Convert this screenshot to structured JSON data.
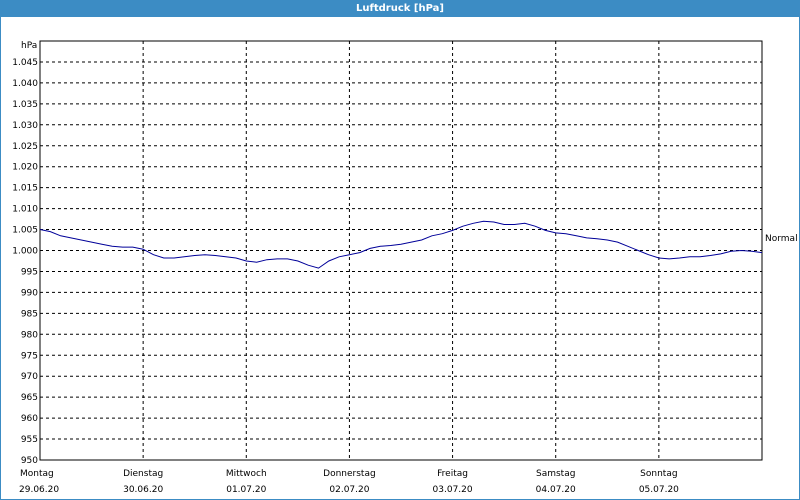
{
  "window": {
    "title": "Luftdruck [hPa]"
  },
  "chart_data": {
    "type": "line",
    "title": "Luftdruck [hPa]",
    "ylabel": "hPa",
    "ylim": [
      950,
      1050
    ],
    "yticks": [
      "950",
      "955",
      "960",
      "965",
      "970",
      "975",
      "980",
      "985",
      "990",
      "995",
      "1.000",
      "1.005",
      "1.010",
      "1.015",
      "1.020",
      "1.025",
      "1.030",
      "1.035",
      "1.040",
      "1.045"
    ],
    "xlim": [
      0,
      7
    ],
    "day_labels": [
      {
        "day": "Montag",
        "date": "29.06.20"
      },
      {
        "day": "Dienstag",
        "date": "30.06.20"
      },
      {
        "day": "Mittwoch",
        "date": "01.07.20"
      },
      {
        "day": "Donnerstag",
        "date": "02.07.20"
      },
      {
        "day": "Freitag",
        "date": "03.07.20"
      },
      {
        "day": "Samstag",
        "date": "04.07.20"
      },
      {
        "day": "Sonntag",
        "date": "05.07.20"
      }
    ],
    "grid": true,
    "reference_line": {
      "label": "Normal",
      "value": 1003
    },
    "line_color": "#000099",
    "series": [
      {
        "x": [
          0,
          0.1,
          0.2,
          0.3,
          0.4,
          0.5,
          0.6,
          0.7,
          0.8,
          0.9,
          1.0,
          1.1,
          1.2,
          1.3,
          1.4,
          1.5,
          1.6,
          1.7,
          1.8,
          1.9,
          2.0,
          2.1,
          2.2,
          2.3,
          2.4,
          2.5,
          2.6,
          2.7,
          2.8,
          2.9,
          3.0,
          3.1,
          3.2,
          3.3,
          3.4,
          3.5,
          3.6,
          3.7,
          3.8,
          3.9,
          4.0,
          4.1,
          4.2,
          4.3,
          4.4,
          4.5,
          4.6,
          4.7,
          4.8,
          4.9,
          5.0,
          5.1,
          5.2,
          5.3,
          5.4,
          5.5,
          5.6,
          5.7,
          5.8,
          5.9,
          6.0,
          6.1,
          6.2,
          6.3,
          6.4,
          6.5,
          6.6,
          6.7,
          6.8,
          6.9,
          7.0
        ],
        "values": [
          1005,
          1004.5,
          1003.5,
          1003,
          1002.5,
          1002,
          1001.5,
          1001,
          1000.8,
          1000.8,
          1000.3,
          999,
          998.2,
          998.2,
          998.5,
          998.8,
          999,
          998.8,
          998.5,
          998.2,
          997.5,
          997.2,
          997.8,
          998,
          998,
          997.5,
          996.5,
          995.8,
          997.5,
          998.5,
          999,
          999.5,
          1000.5,
          1001,
          1001.2,
          1001.5,
          1002,
          1002.5,
          1003.5,
          1004,
          1004.8,
          1005.8,
          1006.5,
          1007,
          1006.8,
          1006.2,
          1006.2,
          1006.5,
          1005.8,
          1004.8,
          1004.2,
          1004,
          1003.5,
          1003,
          1002.8,
          1002.5,
          1002,
          1001,
          1000,
          999,
          998.2,
          998,
          998.2,
          998.5,
          998.5,
          998.8,
          999.2,
          999.8,
          1000,
          999.8,
          999.5
        ]
      }
    ]
  }
}
